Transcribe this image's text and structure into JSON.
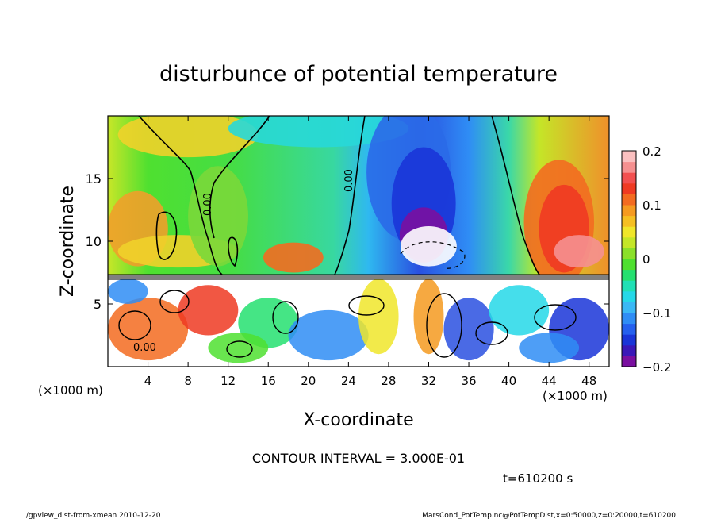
{
  "chart_data": {
    "type": "heatmap",
    "title": "disturbunce of potential temperature",
    "xlabel": "X-coordinate",
    "ylabel": "Z-coordinate",
    "x_unit": "(×1000 m)",
    "y_unit": "(×1000 m)",
    "xlim": [
      0,
      50
    ],
    "ylim": [
      0,
      20
    ],
    "x_ticks": [
      4,
      8,
      12,
      16,
      20,
      24,
      28,
      32,
      36,
      40,
      44,
      48
    ],
    "y_ticks": [
      5,
      10,
      15
    ],
    "colorbar": {
      "range": [
        -0.2,
        0.2
      ],
      "tick_labels": [
        "0.2",
        "0.1",
        "0",
        "−0.1",
        "−0.2"
      ],
      "tick_values": [
        0.2,
        0.1,
        0,
        -0.1,
        -0.2
      ],
      "colors": [
        "#7a0fa0",
        "#3a18b8",
        "#1a35d8",
        "#2560ee",
        "#2f8df5",
        "#3ab8f5",
        "#25d8e8",
        "#20e0b5",
        "#25e070",
        "#4fe030",
        "#8be02a",
        "#c4e628",
        "#f0e62a",
        "#f5bf22",
        "#f59a20",
        "#f36b20",
        "#ef3a22",
        "#f25050",
        "#f59090",
        "#fac0c0"
      ]
    },
    "contour_labels": [
      "0.00",
      "0.00",
      "0.00"
    ],
    "annotation_contour": "CONTOUR INTERVAL = 3.000E-01",
    "annotation_time": "t=610200 s",
    "footer_left": "./gpview_dist-from-xmean  2010-12-20",
    "footer_right": "MarsCond_PotTemp.nc@PotTempDist,x=0:50000,z=0:20000,t=610200"
  }
}
